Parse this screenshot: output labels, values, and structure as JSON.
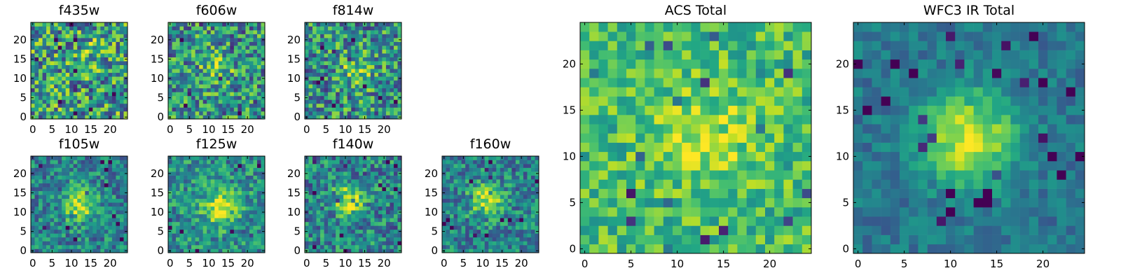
{
  "colormap": "viridis",
  "chart_data": [
    {
      "type": "heatmap",
      "title": "f435w",
      "xlim": [
        0,
        24
      ],
      "ylim": [
        0,
        24
      ],
      "xticks": [
        0,
        5,
        10,
        15,
        20
      ],
      "yticks": [
        0,
        5,
        10,
        15,
        20
      ],
      "source_peak": [
        15,
        17
      ],
      "source_strength": 0.15,
      "source_width": 2.5,
      "noise": 0.55,
      "base": 0.55
    },
    {
      "type": "heatmap",
      "title": "f606w",
      "xlim": [
        0,
        24
      ],
      "ylim": [
        0,
        24
      ],
      "xticks": [
        0,
        5,
        10,
        15,
        20
      ],
      "yticks": [
        0,
        5,
        10,
        15,
        20
      ],
      "source_peak": [
        12,
        12
      ],
      "source_strength": 0.25,
      "source_width": 3,
      "noise": 0.5,
      "base": 0.5
    },
    {
      "type": "heatmap",
      "title": "f814w",
      "xlim": [
        0,
        24
      ],
      "ylim": [
        0,
        24
      ],
      "xticks": [
        0,
        5,
        10,
        15,
        20
      ],
      "yticks": [
        0,
        5,
        10,
        15,
        20
      ],
      "source_peak": [
        13,
        12
      ],
      "source_strength": 0.3,
      "source_width": 3,
      "noise": 0.5,
      "base": 0.5
    },
    {
      "type": "heatmap",
      "title": "f105w",
      "xlim": [
        0,
        24
      ],
      "ylim": [
        0,
        24
      ],
      "xticks": [
        0,
        5,
        10,
        15,
        20
      ],
      "yticks": [
        0,
        5,
        10,
        15,
        20
      ],
      "source_peak": [
        12,
        12
      ],
      "source_strength": 0.45,
      "source_width": 3,
      "noise": 0.35,
      "base": 0.45
    },
    {
      "type": "heatmap",
      "title": "f125w",
      "xlim": [
        0,
        24
      ],
      "ylim": [
        0,
        24
      ],
      "xticks": [
        0,
        5,
        10,
        15,
        20
      ],
      "yticks": [
        0,
        5,
        10,
        15,
        20
      ],
      "source_peak": [
        13,
        11
      ],
      "source_strength": 0.45,
      "source_width": 3,
      "noise": 0.35,
      "base": 0.5
    },
    {
      "type": "heatmap",
      "title": "f140w",
      "xlim": [
        0,
        24
      ],
      "ylim": [
        0,
        24
      ],
      "xticks": [
        0,
        5,
        10,
        15,
        20
      ],
      "yticks": [
        0,
        5,
        10,
        15,
        20
      ],
      "source_peak": [
        11,
        13
      ],
      "source_strength": 0.4,
      "source_width": 3,
      "noise": 0.4,
      "base": 0.45
    },
    {
      "type": "heatmap",
      "title": "f160w",
      "xlim": [
        0,
        24
      ],
      "ylim": [
        0,
        24
      ],
      "xticks": [
        0,
        5,
        10,
        15,
        20
      ],
      "yticks": [
        0,
        5,
        10,
        15,
        20
      ],
      "source_peak": [
        11,
        13
      ],
      "source_strength": 0.45,
      "source_width": 3,
      "noise": 0.35,
      "base": 0.45
    },
    {
      "type": "heatmap",
      "title": "ACS Total",
      "xlim": [
        0,
        24
      ],
      "ylim": [
        0,
        24
      ],
      "xticks": [
        0,
        5,
        10,
        15,
        20
      ],
      "yticks": [
        0,
        5,
        10,
        15,
        20
      ],
      "source_peak": [
        13,
        12
      ],
      "source_strength": 0.2,
      "source_width": 4,
      "noise": 0.3,
      "base": 0.68
    },
    {
      "type": "heatmap",
      "title": "WFC3 IR Total",
      "xlim": [
        0,
        24
      ],
      "ylim": [
        0,
        24
      ],
      "xticks": [
        0,
        5,
        10,
        15,
        20
      ],
      "yticks": [
        0,
        5,
        10,
        15,
        20
      ],
      "source_peak": [
        12,
        12
      ],
      "source_strength": 0.55,
      "source_width": 3.5,
      "noise": 0.18,
      "base": 0.4
    }
  ]
}
